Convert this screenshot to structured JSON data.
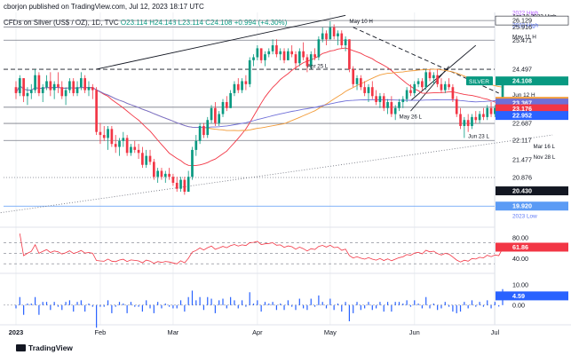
{
  "header": {
    "published": "cborjon published on TradingView.com, Jul 12, 2023 18:17 UTC",
    "symbol": "CFDs on Silver (US$ / OZ), 1D, TVC",
    "ohlc": "O23.114  H24.148  L23.114  C24.108",
    "change": "+0.994 (+4.30%)"
  },
  "watermark": "TradingView",
  "chart_data": {
    "type": "candlestick",
    "price_axis": {
      "min": 19.6,
      "max": 26.4,
      "level_labels": [
        {
          "text": "2022 High",
          "value": 26.4,
          "color": "#b45cff",
          "note_only": true
        },
        {
          "text": "Apr 18 2022 High",
          "value": 26.28,
          "color": "#131722",
          "note_only": true
        },
        {
          "text": "26.129",
          "value": 26.129,
          "color": "#131722",
          "boxed": true
        },
        {
          "text": "2023 High",
          "value": 25.99,
          "color": "#5b77f5",
          "note_only": true
        },
        {
          "text": "25.916",
          "value": 25.916,
          "color": "#131722"
        },
        {
          "text": "May 11 H",
          "value": 25.6,
          "color": "#131722",
          "note_only": true
        },
        {
          "text": "25.471",
          "value": 25.471,
          "color": "#131722"
        },
        {
          "text": "24.497",
          "value": 24.497,
          "color": "#131722"
        },
        {
          "text": "SILVER",
          "value": 24.108,
          "color": "#ffffff",
          "bg": "#089981",
          "tag": true
        },
        {
          "text": "24.108",
          "value": 24.108,
          "color": "#ffffff",
          "bg": "#089981"
        },
        {
          "text": "Jun 12 H",
          "value": 23.65,
          "color": "#131722",
          "note_only": true
        },
        {
          "text": "23.425",
          "value": 23.425,
          "color": "#ffffff",
          "bg": "#f29b38"
        },
        {
          "text": "23.415",
          "value": 23.415,
          "color": "#131722"
        },
        {
          "text": "23.367",
          "value": 23.367,
          "color": "#ffffff",
          "bg": "#6f6fd8"
        },
        {
          "text": "23.228",
          "value": 23.228,
          "color": "#131722"
        },
        {
          "text": "23.176",
          "value": 23.176,
          "color": "#ffffff",
          "bg": "#f23645"
        },
        {
          "text": "22.952",
          "value": 22.952,
          "color": "#ffffff",
          "bg": "#2962ff"
        },
        {
          "text": "22.687",
          "value": 22.687,
          "color": "#131722"
        },
        {
          "text": "22.117",
          "value": 22.117,
          "color": "#131722"
        },
        {
          "text": "21.477",
          "value": 21.477,
          "color": "#131722"
        },
        {
          "text": "20.876",
          "value": 20.876,
          "color": "#131722"
        },
        {
          "text": "20.430",
          "value": 20.43,
          "color": "#ffffff",
          "bg": "#131722"
        },
        {
          "text": "19.920",
          "value": 19.92,
          "color": "#ffffff",
          "bg": "#5b9bf5"
        },
        {
          "text": "2023 Low",
          "value": 19.6,
          "color": "#5b77f5",
          "note_only": true
        }
      ]
    },
    "x_axis": {
      "tick_labels": [
        {
          "label": "2023",
          "index": 0
        },
        {
          "label": "Feb",
          "index": 22
        },
        {
          "label": "Mar",
          "index": 41
        },
        {
          "label": "Apr",
          "index": 63
        },
        {
          "label": "May",
          "index": 82
        },
        {
          "label": "Jun",
          "index": 104
        },
        {
          "label": "Jul",
          "index": 125
        }
      ]
    },
    "horizontal_levels": [
      {
        "value": 26.129,
        "style": "solid",
        "color": "#787b86"
      },
      {
        "value": 25.916,
        "style": "solid",
        "color": "#787b86"
      },
      {
        "value": 25.471,
        "style": "solid",
        "color": "#787b86"
      },
      {
        "value": 24.497,
        "style": "dashed",
        "color": "#131722"
      },
      {
        "value": 23.228,
        "style": "solid",
        "color": "#787b86"
      },
      {
        "value": 22.687,
        "style": "solid",
        "color": "#787b86"
      },
      {
        "value": 22.117,
        "style": "solid",
        "color": "#787b86"
      },
      {
        "value": 20.876,
        "style": "dotted",
        "color": "#787b86"
      },
      {
        "value": 19.92,
        "style": "solid",
        "color": "#5b9bf5"
      }
    ],
    "annotations": [
      {
        "text": "May 10 H",
        "index": 87,
        "value": 26.05
      },
      {
        "text": "Apr 25 L",
        "index": 76,
        "value": 24.55
      },
      {
        "text": "May 26 L",
        "index": 100,
        "value": 22.85
      },
      {
        "text": "Jun 23 L",
        "index": 118,
        "value": 22.2
      },
      {
        "text": "Mar 16 L",
        "index": 135,
        "value": 21.85
      },
      {
        "text": "Nov 28 L",
        "index": 135,
        "value": 21.5
      }
    ],
    "candles": [
      [
        23.9,
        24.1,
        23.5,
        23.7
      ],
      [
        23.7,
        24.3,
        23.6,
        24.2
      ],
      [
        24.2,
        24.2,
        23.4,
        23.6
      ],
      [
        23.6,
        23.9,
        23.3,
        23.7
      ],
      [
        23.7,
        24.0,
        23.5,
        23.8
      ],
      [
        23.8,
        24.5,
        23.7,
        24.3
      ],
      [
        24.3,
        24.4,
        23.6,
        23.7
      ],
      [
        23.7,
        24.0,
        23.4,
        23.9
      ],
      [
        23.9,
        24.3,
        23.8,
        24.1
      ],
      [
        24.1,
        24.4,
        23.6,
        23.8
      ],
      [
        23.8,
        24.1,
        23.5,
        24.0
      ],
      [
        24.0,
        24.4,
        23.7,
        23.9
      ],
      [
        23.9,
        24.1,
        23.5,
        23.6
      ],
      [
        23.6,
        23.9,
        23.3,
        23.8
      ],
      [
        23.8,
        24.2,
        23.7,
        24.1
      ],
      [
        24.1,
        24.2,
        23.6,
        23.7
      ],
      [
        23.7,
        24.1,
        23.6,
        23.9
      ],
      [
        23.9,
        24.4,
        23.8,
        24.2
      ],
      [
        24.2,
        24.3,
        23.7,
        23.8
      ],
      [
        23.8,
        24.1,
        23.6,
        23.9
      ],
      [
        23.9,
        24.0,
        23.5,
        23.8
      ],
      [
        23.8,
        23.9,
        22.3,
        22.4
      ],
      [
        22.4,
        22.7,
        22.0,
        22.3
      ],
      [
        22.3,
        22.6,
        22.1,
        22.2
      ],
      [
        22.2,
        22.6,
        21.8,
        22.5
      ],
      [
        22.5,
        22.6,
        21.9,
        22.0
      ],
      [
        22.0,
        22.3,
        21.7,
        21.9
      ],
      [
        21.9,
        22.2,
        21.6,
        22.1
      ],
      [
        22.1,
        22.4,
        21.9,
        22.2
      ],
      [
        22.2,
        22.3,
        21.6,
        21.7
      ],
      [
        21.7,
        22.0,
        21.6,
        21.9
      ],
      [
        21.9,
        22.1,
        21.7,
        21.8
      ],
      [
        21.8,
        22.0,
        21.5,
        21.7
      ],
      [
        21.7,
        21.9,
        21.2,
        21.3
      ],
      [
        21.3,
        21.8,
        21.2,
        21.6
      ],
      [
        21.6,
        21.8,
        21.3,
        21.4
      ],
      [
        21.4,
        21.5,
        20.8,
        20.9
      ],
      [
        20.9,
        21.2,
        20.7,
        21.1
      ],
      [
        21.1,
        21.2,
        20.8,
        20.9
      ],
      [
        20.9,
        21.1,
        20.7,
        21.0
      ],
      [
        21.0,
        21.2,
        20.8,
        20.9
      ],
      [
        20.9,
        21.0,
        20.6,
        20.7
      ],
      [
        20.7,
        20.9,
        20.4,
        20.5
      ],
      [
        20.5,
        20.9,
        20.4,
        20.8
      ],
      [
        20.8,
        20.9,
        20.3,
        20.4
      ],
      [
        20.4,
        21.1,
        20.4,
        20.9
      ],
      [
        20.9,
        21.9,
        20.8,
        21.8
      ],
      [
        21.8,
        22.3,
        21.6,
        22.1
      ],
      [
        22.1,
        22.7,
        22.0,
        22.6
      ],
      [
        22.6,
        22.7,
        22.2,
        22.3
      ],
      [
        22.3,
        22.9,
        22.2,
        22.8
      ],
      [
        22.8,
        23.3,
        22.7,
        23.2
      ],
      [
        23.2,
        23.4,
        22.6,
        22.7
      ],
      [
        22.7,
        23.1,
        22.6,
        23.0
      ],
      [
        23.0,
        23.5,
        22.9,
        23.4
      ],
      [
        23.4,
        23.6,
        23.1,
        23.2
      ],
      [
        23.2,
        23.8,
        23.2,
        23.7
      ],
      [
        23.7,
        24.1,
        23.6,
        24.0
      ],
      [
        24.0,
        24.2,
        23.7,
        23.8
      ],
      [
        23.8,
        24.2,
        23.7,
        24.1
      ],
      [
        24.1,
        24.3,
        23.8,
        24.0
      ],
      [
        24.0,
        24.9,
        23.9,
        24.8
      ],
      [
        24.8,
        25.0,
        24.6,
        24.9
      ],
      [
        24.9,
        25.3,
        24.8,
        25.2
      ],
      [
        25.2,
        25.2,
        24.7,
        24.8
      ],
      [
        24.8,
        25.1,
        24.6,
        25.0
      ],
      [
        25.0,
        25.2,
        24.9,
        25.1
      ],
      [
        25.1,
        25.5,
        25.0,
        25.3
      ],
      [
        25.3,
        25.5,
        24.9,
        25.0
      ],
      [
        25.0,
        25.2,
        24.8,
        25.1
      ],
      [
        25.1,
        25.2,
        24.7,
        24.8
      ],
      [
        24.8,
        25.2,
        24.8,
        25.1
      ],
      [
        25.1,
        25.3,
        24.9,
        25.0
      ],
      [
        25.0,
        25.1,
        24.5,
        24.7
      ],
      [
        24.7,
        25.2,
        24.6,
        25.1
      ],
      [
        25.1,
        25.4,
        24.8,
        24.9
      ],
      [
        24.9,
        25.0,
        24.4,
        24.6
      ],
      [
        24.6,
        25.1,
        24.5,
        25.0
      ],
      [
        25.0,
        25.2,
        24.8,
        24.9
      ],
      [
        24.9,
        25.6,
        24.8,
        25.5
      ],
      [
        25.5,
        25.9,
        25.4,
        25.7
      ],
      [
        25.7,
        25.8,
        25.3,
        25.5
      ],
      [
        25.5,
        26.1,
        25.5,
        25.9
      ],
      [
        25.9,
        26.0,
        25.5,
        25.6
      ],
      [
        25.6,
        25.8,
        25.3,
        25.7
      ],
      [
        25.7,
        25.8,
        25.2,
        25.3
      ],
      [
        25.3,
        25.6,
        25.1,
        25.5
      ],
      [
        25.5,
        25.5,
        24.4,
        24.5
      ],
      [
        24.5,
        24.6,
        23.9,
        24.0
      ],
      [
        24.0,
        24.3,
        23.8,
        24.2
      ],
      [
        24.2,
        24.3,
        23.8,
        23.9
      ],
      [
        23.9,
        24.1,
        23.6,
        23.7
      ],
      [
        23.7,
        24.0,
        23.4,
        23.9
      ],
      [
        23.9,
        24.1,
        23.5,
        23.6
      ],
      [
        23.6,
        23.8,
        23.3,
        23.4
      ],
      [
        23.4,
        23.7,
        23.2,
        23.6
      ],
      [
        23.6,
        23.7,
        23.1,
        23.2
      ],
      [
        23.2,
        23.5,
        23.0,
        23.4
      ],
      [
        23.4,
        23.6,
        22.9,
        23.0
      ],
      [
        23.0,
        23.3,
        22.8,
        23.2
      ],
      [
        23.2,
        23.5,
        23.1,
        23.4
      ],
      [
        23.4,
        23.6,
        23.2,
        23.5
      ],
      [
        23.5,
        23.9,
        23.4,
        23.8
      ],
      [
        23.8,
        24.0,
        23.6,
        23.7
      ],
      [
        23.7,
        24.1,
        23.6,
        24.0
      ],
      [
        24.0,
        24.2,
        23.9,
        24.1
      ],
      [
        24.1,
        24.2,
        23.8,
        23.9
      ],
      [
        23.9,
        24.5,
        23.8,
        24.4
      ],
      [
        24.4,
        24.5,
        24.1,
        24.2
      ],
      [
        24.2,
        24.4,
        24.0,
        24.3
      ],
      [
        24.3,
        24.5,
        23.9,
        24.0
      ],
      [
        24.0,
        24.2,
        23.7,
        23.8
      ],
      [
        23.8,
        24.1,
        23.7,
        24.0
      ],
      [
        24.0,
        24.2,
        23.8,
        23.9
      ],
      [
        23.9,
        24.0,
        23.4,
        23.5
      ],
      [
        23.5,
        23.6,
        22.9,
        23.0
      ],
      [
        23.0,
        23.2,
        22.5,
        22.6
      ],
      [
        22.6,
        22.9,
        22.2,
        22.8
      ],
      [
        22.8,
        23.0,
        22.4,
        22.6
      ],
      [
        22.6,
        23.0,
        22.5,
        22.9
      ],
      [
        22.9,
        23.1,
        22.7,
        22.8
      ],
      [
        22.8,
        23.1,
        22.7,
        23.0
      ],
      [
        23.0,
        23.2,
        22.8,
        22.9
      ],
      [
        22.9,
        23.3,
        22.8,
        23.2
      ],
      [
        23.2,
        23.4,
        22.9,
        23.0
      ],
      [
        23.0,
        23.3,
        22.9,
        23.2
      ],
      [
        23.2,
        23.4,
        23.0,
        23.114
      ],
      [
        23.114,
        24.148,
        23.114,
        24.108
      ]
    ],
    "rsi": {
      "axis_ticks": [
        80.0,
        40.0
      ],
      "value_label": {
        "text": "61.86",
        "value": 61.86,
        "bg": "#f23645"
      },
      "dashed_levels": [
        70,
        50,
        30
      ]
    },
    "volume_panel": {
      "axis_ticks": [
        10.0,
        0.0
      ],
      "value_label": {
        "text": "4.59",
        "value": 4.59,
        "bg": "#2962ff"
      }
    },
    "moving_averages": [
      {
        "period": 20,
        "color": "#f23645"
      },
      {
        "period": 50,
        "color": "#f29b38"
      },
      {
        "period": 100,
        "color": "#6f6fd8"
      }
    ],
    "colors": {
      "up": "#089981",
      "down": "#f23645"
    }
  }
}
